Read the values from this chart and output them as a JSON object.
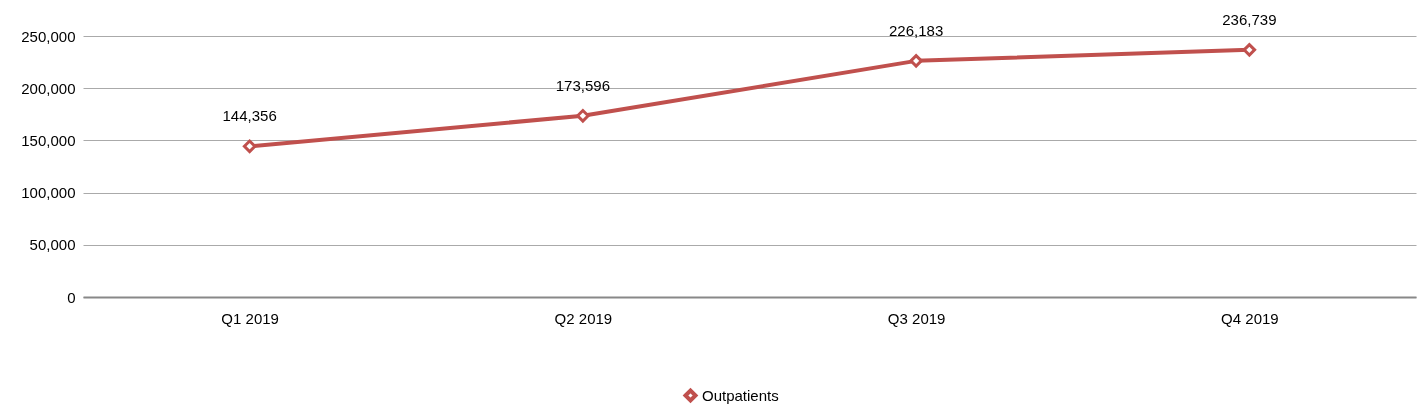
{
  "chart_data": {
    "type": "line",
    "categories": [
      "Q1 2019",
      "Q2 2019",
      "Q3 2019",
      "Q4 2019"
    ],
    "series": [
      {
        "name": "Outpatients",
        "color": "#c0504d",
        "values": [
          144356,
          173596,
          226183,
          236739
        ],
        "value_labels": [
          "144,356",
          "173,596",
          "226,183",
          "236,739"
        ]
      }
    ],
    "ylim": [
      0,
      250000
    ],
    "yticks": [
      0,
      {
        "value": 50000,
        "label": "50,000"
      },
      {
        "value": 100000,
        "label": "100,000"
      },
      {
        "value": 150000,
        "label": "150,000"
      },
      {
        "value": 200000,
        "label": "200,000"
      },
      {
        "value": 250000,
        "label": "250,000"
      }
    ],
    "grid": "y",
    "legend": "bottom",
    "marker": "diamond"
  }
}
